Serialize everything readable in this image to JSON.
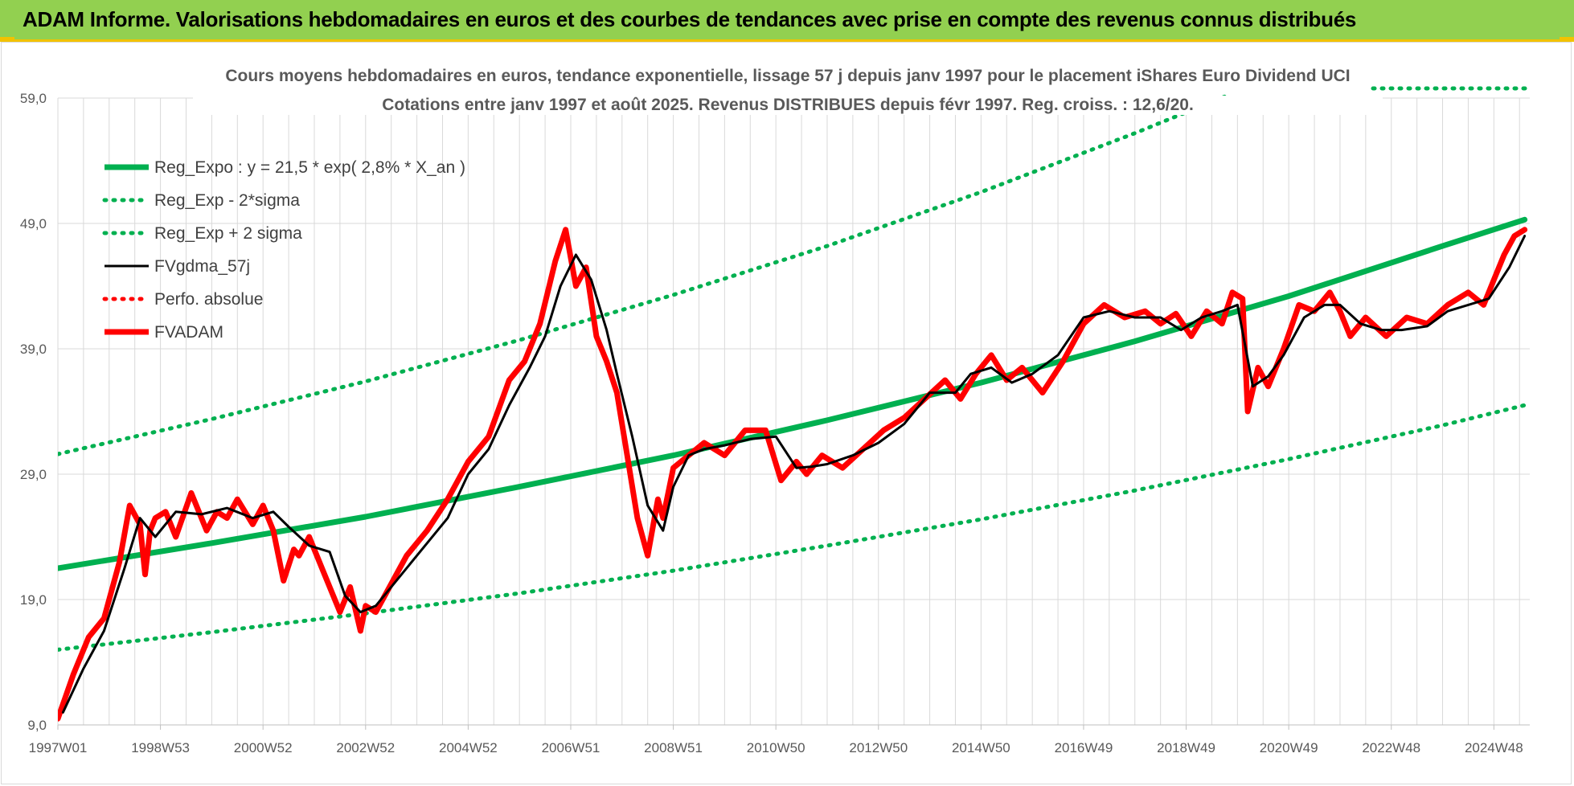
{
  "header": {
    "title": "ADAM Informe. Valorisations hebdomadaires en euros et des courbes de tendances avec prise en compte des revenus connus distribués"
  },
  "colors": {
    "header_bg": "#92d050",
    "trend": "#00b050",
    "smoothed": "#000000",
    "price": "#ff0000",
    "grid": "#d9d9d9"
  },
  "chart_data": {
    "type": "line",
    "title": "Cours moyens hebdomadaires en euros, tendance exponentielle, lissage 57 j depuis janv 1997 pour le placement iShares Euro Dividend UCI",
    "subtitle": "Cotations entre janv 1997 et août 2025.  Revenus DISTRIBUES depuis févr 1997.  Reg. croiss. : 12,6/20.",
    "ylim": [
      9.0,
      59.0
    ],
    "xlim": [
      1997.0,
      2025.7
    ],
    "y_ticks": [
      "59,0",
      "49,0",
      "39,0",
      "29,0",
      "19,0",
      "9,0"
    ],
    "y_tick_values": [
      59,
      49,
      39,
      29,
      19,
      9
    ],
    "x_ticks": [
      "1997W01",
      "1998W53",
      "2000W52",
      "2002W52",
      "2004W52",
      "2006W51",
      "2008W51",
      "2010W50",
      "2012W50",
      "2014W50",
      "2016W49",
      "2018W49",
      "2020W49",
      "2022W48",
      "2024W48"
    ],
    "x_tick_values": [
      1997.0,
      1999.0,
      2001.0,
      2003.0,
      2005.0,
      2007.0,
      2009.0,
      2011.0,
      2013.0,
      2015.0,
      2017.0,
      2019.0,
      2021.0,
      2023.0,
      2025.0
    ],
    "grid": true,
    "legend_position": "top-left",
    "series": [
      {
        "name": "Reg_Expo : y = 21,5 * exp( 2,8% *  X_an )",
        "style": "solid-thick",
        "color": "#00b050",
        "x": [
          1997.0,
          2000.0,
          2003.0,
          2006.0,
          2009.0,
          2012.0,
          2015.0,
          2018.0,
          2021.0,
          2024.0,
          2025.6
        ],
        "values": [
          21.5,
          23.5,
          25.6,
          28.0,
          30.5,
          33.3,
          36.3,
          39.6,
          43.2,
          47.2,
          49.3
        ]
      },
      {
        "name": "Reg_Exp - 2*sigma",
        "style": "dotted",
        "color": "#00b050",
        "x": [
          1997.0,
          2000.0,
          2003.0,
          2006.0,
          2009.0,
          2012.0,
          2015.0,
          2018.0,
          2021.0,
          2024.0,
          2025.6
        ],
        "values": [
          15.0,
          16.4,
          17.9,
          19.5,
          21.3,
          23.3,
          25.4,
          27.7,
          30.2,
          32.9,
          34.5
        ]
      },
      {
        "name": "Reg_Exp + 2 sigma",
        "style": "dotted",
        "color": "#00b050",
        "x": [
          1997.0,
          2000.0,
          2003.0,
          2006.0,
          2009.0,
          2012.0,
          2015.0,
          2018.0,
          2019.8
        ],
        "values": [
          30.6,
          33.4,
          36.4,
          39.7,
          43.3,
          47.2,
          51.5,
          56.2,
          59.2
        ]
      },
      {
        "name": "FVgdma_57j",
        "style": "solid",
        "color": "#000000",
        "x": [
          1997.1,
          1997.5,
          1997.9,
          1998.3,
          1998.6,
          1998.9,
          1999.3,
          1999.8,
          2000.3,
          2000.8,
          2001.2,
          2001.5,
          2001.9,
          2002.3,
          2002.6,
          2002.9,
          2003.2,
          2003.7,
          2004.2,
          2004.6,
          2005.0,
          2005.4,
          2005.8,
          2006.2,
          2006.5,
          2006.8,
          2007.1,
          2007.4,
          2007.7,
          2007.9,
          2008.2,
          2008.5,
          2008.8,
          2009.0,
          2009.3,
          2009.6,
          2010.0,
          2010.5,
          2011.0,
          2011.4,
          2011.7,
          2012.0,
          2012.5,
          2013.0,
          2013.5,
          2014.0,
          2014.5,
          2014.8,
          2015.2,
          2015.6,
          2016.0,
          2016.5,
          2017.0,
          2017.5,
          2018.0,
          2018.5,
          2018.9,
          2019.3,
          2019.7,
          2020.0,
          2020.3,
          2020.6,
          2020.9,
          2021.3,
          2021.7,
          2022.0,
          2022.4,
          2022.8,
          2023.2,
          2023.7,
          2024.1,
          2024.5,
          2024.9,
          2025.3,
          2025.6
        ],
        "values": [
          10.0,
          13.5,
          16.5,
          21.5,
          25.5,
          24.0,
          26.0,
          25.8,
          26.3,
          25.5,
          26.0,
          24.8,
          23.3,
          22.8,
          19.3,
          18.0,
          18.5,
          21.0,
          23.5,
          25.5,
          29.0,
          31.0,
          34.5,
          37.5,
          40.0,
          44.0,
          46.5,
          44.5,
          40.5,
          37.0,
          32.0,
          26.5,
          24.5,
          28.0,
          30.5,
          31.0,
          31.3,
          31.8,
          32.0,
          29.5,
          29.6,
          29.8,
          30.5,
          31.5,
          33.0,
          35.5,
          35.5,
          37.0,
          37.5,
          36.3,
          37.0,
          38.5,
          41.5,
          42.0,
          41.5,
          41.5,
          40.5,
          41.5,
          42.0,
          42.5,
          36.0,
          36.8,
          38.5,
          41.5,
          42.5,
          42.5,
          41.0,
          40.5,
          40.5,
          40.8,
          42.0,
          42.5,
          43.0,
          45.5,
          48.0
        ]
      },
      {
        "name": "Perfo. absolue",
        "style": "dotted",
        "color": "#ff0000",
        "x": [],
        "values": []
      },
      {
        "name": "FVADAM",
        "style": "solid-thick",
        "color": "#ff0000",
        "x": [
          1997.0,
          1997.3,
          1997.6,
          1997.9,
          1998.2,
          1998.4,
          1998.6,
          1998.7,
          1998.8,
          1998.9,
          1999.1,
          1999.3,
          1999.6,
          1999.9,
          2000.1,
          2000.3,
          2000.5,
          2000.8,
          2001.0,
          2001.2,
          2001.4,
          2001.6,
          2001.7,
          2001.9,
          2002.2,
          2002.5,
          2002.7,
          2002.9,
          2003.0,
          2003.2,
          2003.4,
          2003.8,
          2004.2,
          2004.6,
          2005.0,
          2005.4,
          2005.8,
          2006.1,
          2006.4,
          2006.7,
          2006.9,
          2007.1,
          2007.3,
          2007.5,
          2007.7,
          2007.9,
          2008.1,
          2008.3,
          2008.5,
          2008.7,
          2008.8,
          2009.0,
          2009.3,
          2009.6,
          2010.0,
          2010.4,
          2010.8,
          2011.1,
          2011.4,
          2011.6,
          2011.9,
          2012.3,
          2012.7,
          2013.1,
          2013.5,
          2013.9,
          2014.3,
          2014.6,
          2014.9,
          2015.2,
          2015.5,
          2015.8,
          2016.2,
          2016.6,
          2017.0,
          2017.4,
          2017.8,
          2018.2,
          2018.5,
          2018.8,
          2019.1,
          2019.4,
          2019.7,
          2019.9,
          2020.1,
          2020.2,
          2020.4,
          2020.6,
          2020.9,
          2021.2,
          2021.5,
          2021.8,
          2022.0,
          2022.2,
          2022.5,
          2022.9,
          2023.3,
          2023.7,
          2024.1,
          2024.5,
          2024.8,
          2025.0,
          2025.2,
          2025.4,
          2025.6
        ],
        "values": [
          9.5,
          13.0,
          16.0,
          17.5,
          22.0,
          26.5,
          25.0,
          21.0,
          24.5,
          25.5,
          26.0,
          24.0,
          27.5,
          24.5,
          26.0,
          25.5,
          27.0,
          25.0,
          26.5,
          24.5,
          20.5,
          23.0,
          22.5,
          24.0,
          21.0,
          18.0,
          20.0,
          16.5,
          18.5,
          18.0,
          19.5,
          22.5,
          24.5,
          27.0,
          30.0,
          32.0,
          36.5,
          38.0,
          41.0,
          46.0,
          48.5,
          44.0,
          45.5,
          40.0,
          38.0,
          35.5,
          30.5,
          25.5,
          22.5,
          27.0,
          25.5,
          29.5,
          30.5,
          31.5,
          30.5,
          32.5,
          32.5,
          28.5,
          30.0,
          29.0,
          30.5,
          29.5,
          31.0,
          32.5,
          33.5,
          35.0,
          36.5,
          35.0,
          37.0,
          38.5,
          36.5,
          37.5,
          35.5,
          38.0,
          41.0,
          42.5,
          41.5,
          42.0,
          41.0,
          41.8,
          40.0,
          42.0,
          41.0,
          43.5,
          43.0,
          34.0,
          37.5,
          36.0,
          39.0,
          42.5,
          42.0,
          43.5,
          42.0,
          40.0,
          41.5,
          40.0,
          41.5,
          41.0,
          42.5,
          43.5,
          42.5,
          44.5,
          46.5,
          48.0,
          48.5
        ]
      }
    ]
  }
}
